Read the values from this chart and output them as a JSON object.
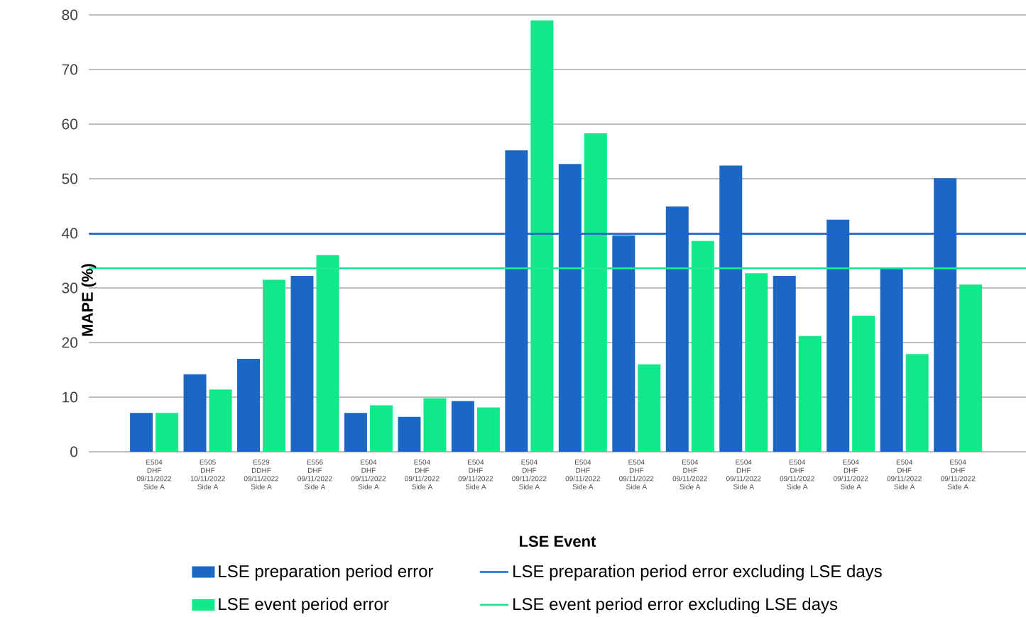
{
  "chart_data": {
    "type": "bar",
    "xlabel": "LSE Event",
    "ylabel": "MAPE (%)",
    "categories": [
      "E504\nDHF\n09/11/2022\nSide A",
      "E505\nDHF\n10/11/2022\nSide A",
      "E529\nDDHF\n09/11/2022\nSide A",
      "E556\nDHF\n09/11/2022\nSide A",
      "E504\nDHF\n09/11/2022\nSide A",
      "E504\nDHF\n09/11/2022\nSide A",
      "E504\nDHF\n09/11/2022\nSide A",
      "E504\nDHF\n09/11/2022\nSide A",
      "E504\nDHF\n09/11/2022\nSide A",
      "E504\nDHF\n09/11/2022\nSide A",
      "E504\nDHF\n09/11/2022\nSide A",
      "E504\nDHF\n09/11/2022\nSide A",
      "E504\nDHF\n09/11/2022\nSide A",
      "E504\nDHF\n09/11/2022\nSide A",
      "E504\nDHF\n09/11/2022\nSide A",
      "E504\nDHF\n09/11/2022\nSide A"
    ],
    "series": [
      {
        "name": "LSE preparation period error",
        "color": "#1c66c4",
        "values": [
          7.1,
          14.2,
          17.0,
          32.2,
          7.1,
          6.4,
          9.3,
          55.2,
          52.7,
          39.6,
          44.9,
          52.4,
          32.2,
          42.5,
          33.5,
          50.1
        ]
      },
      {
        "name": "LSE event period error",
        "color": "#10e88a",
        "values": [
          7.1,
          11.4,
          31.5,
          36.0,
          8.5,
          9.8,
          8.1,
          79.0,
          58.3,
          16.0,
          38.6,
          32.7,
          21.2,
          24.9,
          17.9,
          30.6
        ]
      }
    ],
    "ref_lines": [
      {
        "axis": "y",
        "value": 39.9,
        "label": "LSE preparation period error excluding LSE days",
        "color": "#1e64d0"
      },
      {
        "axis": "y",
        "value": 33.6,
        "label": "LSE event period error excluding LSE days",
        "color": "#1de891"
      }
    ],
    "ylim": [
      0,
      80
    ],
    "yticks": [
      0,
      10,
      20,
      30,
      40,
      50,
      60,
      70,
      80
    ],
    "grid": "y",
    "legend": "bottom"
  }
}
